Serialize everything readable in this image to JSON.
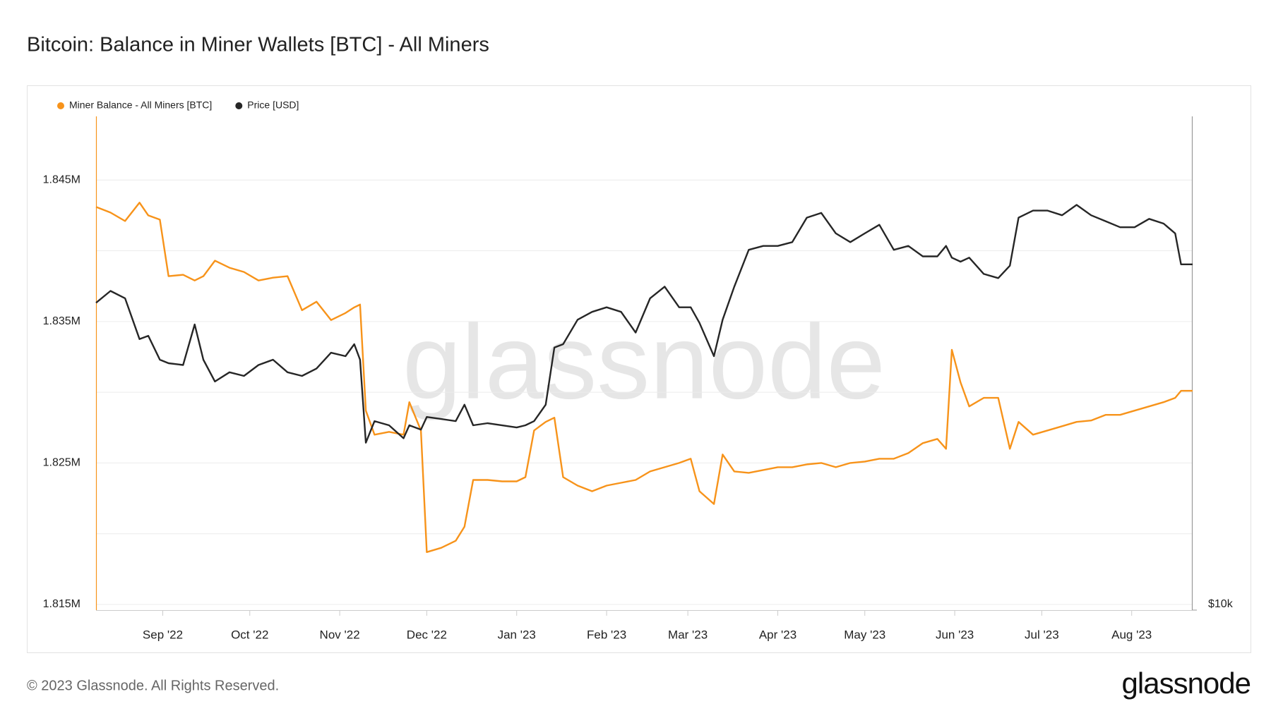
{
  "chart_data": {
    "type": "line",
    "title": "Bitcoin: Balance in Miner Wallets [BTC] - All Miners",
    "watermark": "glassnode",
    "legend": "top-left",
    "grid": true,
    "x": [
      "2022-08-09",
      "2022-08-14",
      "2022-08-19",
      "2022-08-24",
      "2022-08-27",
      "2022-08-31",
      "2022-09-03",
      "2022-09-08",
      "2022-09-12",
      "2022-09-15",
      "2022-09-19",
      "2022-09-24",
      "2022-09-29",
      "2022-10-04",
      "2022-10-09",
      "2022-10-14",
      "2022-10-19",
      "2022-10-24",
      "2022-10-29",
      "2022-11-03",
      "2022-11-06",
      "2022-11-08",
      "2022-11-10",
      "2022-11-13",
      "2022-11-18",
      "2022-11-23",
      "2022-11-25",
      "2022-11-29",
      "2022-12-01",
      "2022-12-06",
      "2022-12-11",
      "2022-12-14",
      "2022-12-17",
      "2022-12-22",
      "2022-12-27",
      "2023-01-01",
      "2023-01-04",
      "2023-01-07",
      "2023-01-11",
      "2023-01-14",
      "2023-01-17",
      "2023-01-22",
      "2023-01-27",
      "2023-02-01",
      "2023-02-06",
      "2023-02-11",
      "2023-02-16",
      "2023-02-21",
      "2023-02-26",
      "2023-03-02",
      "2023-03-05",
      "2023-03-10",
      "2023-03-13",
      "2023-03-17",
      "2023-03-22",
      "2023-03-27",
      "2023-04-01",
      "2023-04-06",
      "2023-04-11",
      "2023-04-16",
      "2023-04-21",
      "2023-04-26",
      "2023-05-01",
      "2023-05-06",
      "2023-05-11",
      "2023-05-16",
      "2023-05-21",
      "2023-05-26",
      "2023-05-29",
      "2023-05-31",
      "2023-06-03",
      "2023-06-06",
      "2023-06-11",
      "2023-06-16",
      "2023-06-20",
      "2023-06-23",
      "2023-06-28",
      "2023-07-03",
      "2023-07-08",
      "2023-07-13",
      "2023-07-18",
      "2023-07-23",
      "2023-07-28",
      "2023-08-02",
      "2023-08-07",
      "2023-08-12",
      "2023-08-16",
      "2023-08-18",
      "2023-08-22"
    ],
    "series": [
      {
        "name": "Miner Balance - All Miners [BTC]",
        "color": "#f7931a",
        "values": [
          1843100,
          1842700,
          1842100,
          1843400,
          1842500,
          1842200,
          1838200,
          1838300,
          1837900,
          1838200,
          1839300,
          1838800,
          1838500,
          1837900,
          1838100,
          1838200,
          1835800,
          1836400,
          1835100,
          1835600,
          1836000,
          1836200,
          1828700,
          1827000,
          1827200,
          1827000,
          1829300,
          1827300,
          1818700,
          1819000,
          1819500,
          1820500,
          1823800,
          1823800,
          1823700,
          1823700,
          1824000,
          1827300,
          1827900,
          1828200,
          1824000,
          1823400,
          1823000,
          1823400,
          1823600,
          1823800,
          1824400,
          1824700,
          1825000,
          1825300,
          1823000,
          1822100,
          1825600,
          1824400,
          1824300,
          1824500,
          1824700,
          1824700,
          1824900,
          1825000,
          1824700,
          1825000,
          1825100,
          1825300,
          1825300,
          1825700,
          1826400,
          1826700,
          1826000,
          1833000,
          1830700,
          1829000,
          1829600,
          1829600,
          1826000,
          1827900,
          1827000,
          1827300,
          1827600,
          1827900,
          1828000,
          1828400,
          1828400,
          1828700,
          1829000,
          1829300,
          1829600,
          1830100,
          1830100
        ]
      },
      {
        "name": "Price [USD]",
        "color": "#262626",
        "axis": "y2",
        "values": [
          23700,
          24500,
          24000,
          21400,
          21600,
          20200,
          20000,
          19900,
          22300,
          20200,
          19000,
          19500,
          19300,
          19900,
          20200,
          19500,
          19300,
          19700,
          20600,
          20400,
          21100,
          20200,
          16000,
          17000,
          16800,
          16200,
          16800,
          16600,
          17200,
          17100,
          17000,
          17800,
          16800,
          16900,
          16800,
          16700,
          16800,
          17000,
          17800,
          20900,
          21100,
          22600,
          23100,
          23400,
          23100,
          21800,
          24000,
          24800,
          23400,
          23400,
          22400,
          20400,
          22600,
          24800,
          27500,
          27800,
          27800,
          28100,
          30100,
          30500,
          28800,
          28100,
          28800,
          29500,
          27500,
          27800,
          27000,
          27000,
          27800,
          26900,
          26600,
          26900,
          25700,
          25400,
          26300,
          30100,
          30700,
          30700,
          30300,
          31200,
          30300,
          29800,
          29300,
          29300,
          30000,
          29600,
          28800,
          26400,
          26400
        ]
      }
    ],
    "xlim": [
      "2022-08-09",
      "2023-08-22"
    ],
    "xticks": [
      {
        "value": "2022-09-01",
        "label": "Sep '22"
      },
      {
        "value": "2022-10-01",
        "label": "Oct '22"
      },
      {
        "value": "2022-11-01",
        "label": "Nov '22"
      },
      {
        "value": "2022-12-01",
        "label": "Dec '22"
      },
      {
        "value": "2023-01-01",
        "label": "Jan '23"
      },
      {
        "value": "2023-02-01",
        "label": "Feb '23"
      },
      {
        "value": "2023-03-01",
        "label": "Mar '23"
      },
      {
        "value": "2023-04-01",
        "label": "Apr '23"
      },
      {
        "value": "2023-05-01",
        "label": "May '23"
      },
      {
        "value": "2023-06-01",
        "label": "Jun '23"
      },
      {
        "value": "2023-07-01",
        "label": "Jul '23"
      },
      {
        "value": "2023-08-01",
        "label": "Aug '23"
      }
    ],
    "ylim": [
      1814600,
      1849500
    ],
    "yticks": [
      {
        "value": 1815000,
        "label": "1.815M"
      },
      {
        "value": 1820000,
        "label": null
      },
      {
        "value": 1825000,
        "label": "1.825M"
      },
      {
        "value": 1830000,
        "label": null
      },
      {
        "value": 1835000,
        "label": "1.835M"
      },
      {
        "value": 1840000,
        "label": null
      },
      {
        "value": 1845000,
        "label": "1.845M"
      }
    ],
    "y2lim": [
      10000,
      40000
    ],
    "y2scale": "log",
    "y2ticks": [
      {
        "value": 10000,
        "label": "$10k"
      }
    ]
  },
  "footer": {
    "copyright": "© 2023 Glassnode. All Rights Reserved.",
    "logo": "glassnode"
  }
}
